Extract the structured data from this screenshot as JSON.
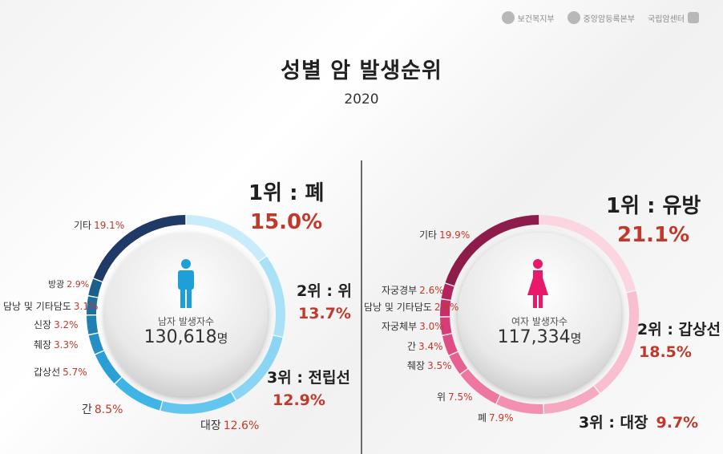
{
  "header": {
    "logos": [
      "보건복지부",
      "중앙암등록본부",
      "국립암센터"
    ],
    "title": "성별 암 발생순위",
    "year": "2020"
  },
  "colors": {
    "male_top": "#1f3a66",
    "male_light": "#bfe6f7",
    "female_top": "#8e1c4a",
    "female_light": "#fbd0dc",
    "pct_red": "#c0392b"
  },
  "male": {
    "caption": "남자 발생자수",
    "count": "130,618",
    "unit": "명",
    "labels": {
      "rank1": "1위 : 폐",
      "rank1_pct": "15.0%",
      "rank2": "2위 : 위",
      "rank2_pct": "13.7%",
      "rank3": "3위 : 전립선",
      "rank3_pct": "12.9%",
      "daejang": "대장",
      "daejang_pct": "12.6%",
      "gan": "간",
      "gan_pct": "8.5%",
      "gapsang": "갑상선",
      "gapsang_pct": "5.7%",
      "chwejang": "췌장",
      "chwejang_pct": "3.3%",
      "sinjang": "신장",
      "sinjang_pct": "3.2%",
      "damnang": "담낭 및 기타담도",
      "damnang_pct": "3.1%",
      "banggwang": "방광",
      "banggwang_pct": "2.9%",
      "gita": "기타",
      "gita_pct": "19.1%"
    }
  },
  "female": {
    "caption": "여자 발생자수",
    "count": "117,334",
    "unit": "명",
    "labels": {
      "rank1": "1위 : 유방",
      "rank1_pct": "21.1%",
      "rank2": "2위 : 갑상선",
      "rank2_pct": "18.5%",
      "rank3": "3위 : 대장",
      "rank3_pct": "9.7%",
      "pye": "폐",
      "pye_pct": "7.9%",
      "wi": "위",
      "wi_pct": "7.5%",
      "chwejang": "췌장",
      "chwejang_pct": "3.5%",
      "gan": "간",
      "gan_pct": "3.4%",
      "jagungche": "자궁체부",
      "jagungche_pct": "3.0%",
      "damnang": "담낭 및 기타담도",
      "damnang_pct": "2.9%",
      "jagunggyeong": "자궁경부",
      "jagunggyeong_pct": "2.6%",
      "gita": "기타",
      "gita_pct": "19.9%"
    }
  },
  "chart_data": [
    {
      "type": "pie",
      "categories": [
        "폐",
        "위",
        "전립선",
        "대장",
        "간",
        "갑상선",
        "췌장",
        "신장",
        "담낭 및 기타담도",
        "방광",
        "기타"
      ],
      "values": [
        15.0,
        13.7,
        12.9,
        12.6,
        8.5,
        5.7,
        3.3,
        3.2,
        3.1,
        2.9,
        19.1
      ],
      "colors": [
        "#c9ecfa",
        "#a9e1f7",
        "#8ad5f4",
        "#63c6ef",
        "#3fb4e6",
        "#2a9fd6",
        "#2590c6",
        "#2180b3",
        "#1d70a0",
        "#1b5f8c",
        "#1f3a66"
      ]
    },
    {
      "type": "pie",
      "categories": [
        "유방",
        "갑상선",
        "대장",
        "폐",
        "위",
        "췌장",
        "간",
        "자궁체부",
        "담낭 및 기타담도",
        "자궁경부",
        "기타"
      ],
      "values": [
        21.1,
        18.5,
        9.7,
        7.9,
        7.5,
        3.5,
        3.4,
        3.0,
        2.9,
        2.6,
        19.9
      ],
      "colors": [
        "#fbd5df",
        "#f9bfd0",
        "#f6a8c0",
        "#f38fb0",
        "#ee76a0",
        "#e95f91",
        "#e04d84",
        "#d63c77",
        "#c52e6a",
        "#b2245e",
        "#8e1c4a"
      ]
    }
  ]
}
